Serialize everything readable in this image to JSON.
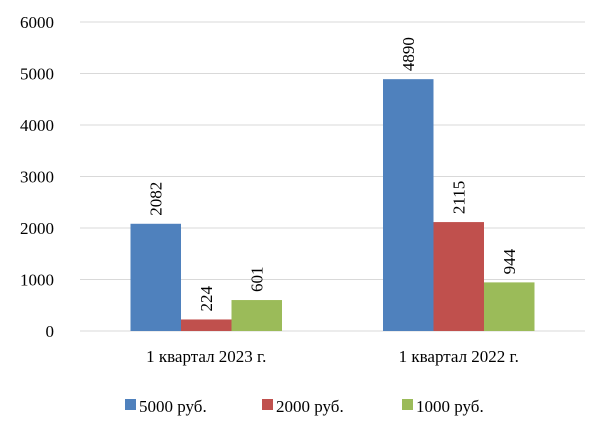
{
  "chart_data": {
    "type": "bar",
    "categories": [
      "1 квартал 2023 г.",
      "1 квартал 2022 г."
    ],
    "series": [
      {
        "name": "5000 руб.",
        "color": "#4f81bd",
        "values": [
          2082,
          4890
        ]
      },
      {
        "name": "2000 руб.",
        "color": "#c0504d",
        "values": [
          224,
          2115
        ]
      },
      {
        "name": "1000 руб.",
        "color": "#9bbb59",
        "values": [
          601,
          944
        ]
      }
    ],
    "ylim": [
      0,
      6000
    ],
    "yticks": [
      0,
      1000,
      2000,
      3000,
      4000,
      5000,
      6000
    ],
    "grid": true,
    "legend_position": "bottom",
    "data_labels": "rotated-vertical"
  }
}
